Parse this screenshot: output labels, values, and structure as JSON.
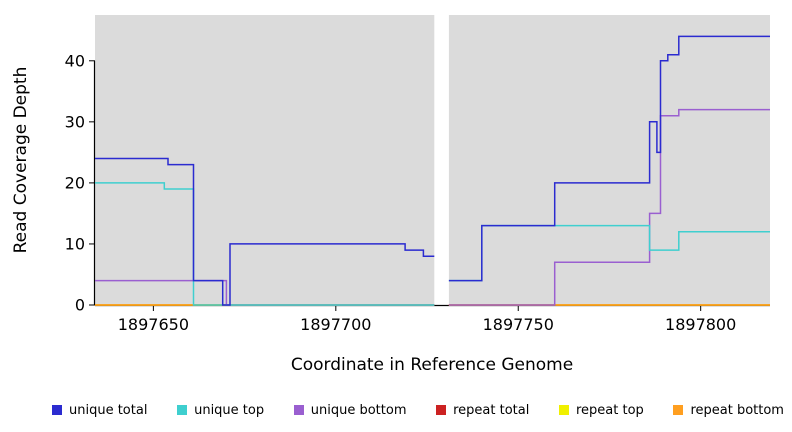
{
  "chart_data": {
    "type": "line",
    "style": "step",
    "title": "",
    "xlabel": "Coordinate in Reference Genome",
    "ylabel": "Read Coverage Depth",
    "xlim": [
      1897634,
      1897819
    ],
    "ylim": [
      0,
      47.5
    ],
    "xticks": [
      1897650,
      1897700,
      1897750,
      1897800
    ],
    "yticks": [
      0,
      10,
      20,
      30,
      40
    ],
    "gap_x": [
      1897727,
      1897731
    ],
    "panel_color": "#DBDBDB",
    "axis_color": "#000000",
    "legend_position": "bottom",
    "draw_order": [
      "repeat total",
      "repeat top",
      "repeat bottom",
      "unique bottom",
      "unique top",
      "unique total"
    ],
    "series": [
      {
        "name": "unique total",
        "color": "#2B2BD0",
        "segments": [
          [
            [
              1897634,
              24
            ],
            [
              1897654,
              24
            ],
            [
              1897654,
              23
            ],
            [
              1897661,
              23
            ],
            [
              1897661,
              4
            ],
            [
              1897669,
              4
            ],
            [
              1897669,
              0
            ],
            [
              1897671,
              0
            ],
            [
              1897671,
              10
            ],
            [
              1897719,
              10
            ],
            [
              1897719,
              9
            ],
            [
              1897724,
              9
            ],
            [
              1897724,
              8
            ],
            [
              1897727,
              8
            ]
          ],
          [
            [
              1897731,
              4
            ],
            [
              1897740,
              4
            ],
            [
              1897740,
              13
            ],
            [
              1897760,
              13
            ],
            [
              1897760,
              20
            ],
            [
              1897786,
              20
            ],
            [
              1897786,
              30
            ],
            [
              1897788,
              30
            ],
            [
              1897788,
              25
            ],
            [
              1897789,
              25
            ],
            [
              1897789,
              40
            ],
            [
              1897791,
              40
            ],
            [
              1897791,
              41
            ],
            [
              1897794,
              41
            ],
            [
              1897794,
              44
            ],
            [
              1897819,
              44
            ]
          ]
        ]
      },
      {
        "name": "unique top",
        "color": "#3FCFCF",
        "segments": [
          [
            [
              1897634,
              20
            ],
            [
              1897653,
              20
            ],
            [
              1897653,
              19
            ],
            [
              1897661,
              19
            ],
            [
              1897661,
              0
            ],
            [
              1897727,
              0
            ]
          ],
          [
            [
              1897731,
              4
            ],
            [
              1897740,
              4
            ],
            [
              1897740,
              13
            ],
            [
              1897786,
              13
            ],
            [
              1897786,
              9
            ],
            [
              1897794,
              9
            ],
            [
              1897794,
              12
            ],
            [
              1897819,
              12
            ]
          ]
        ]
      },
      {
        "name": "unique bottom",
        "color": "#9A5FD0",
        "segments": [
          [
            [
              1897634,
              4
            ],
            [
              1897670,
              4
            ],
            [
              1897670,
              0
            ],
            [
              1897727,
              0
            ]
          ],
          [
            [
              1897731,
              0
            ],
            [
              1897760,
              0
            ],
            [
              1897760,
              7
            ],
            [
              1897786,
              7
            ],
            [
              1897786,
              15
            ],
            [
              1897789,
              15
            ],
            [
              1897789,
              31
            ],
            [
              1897794,
              31
            ],
            [
              1897794,
              32
            ],
            [
              1897819,
              32
            ]
          ]
        ]
      },
      {
        "name": "repeat total",
        "color": "#CC2222",
        "segments": [
          [
            [
              1897634,
              0
            ],
            [
              1897727,
              0
            ]
          ],
          [
            [
              1897731,
              0
            ],
            [
              1897819,
              0
            ]
          ]
        ]
      },
      {
        "name": "repeat top",
        "color": "#F0F000",
        "segments": [
          [
            [
              1897634,
              0
            ],
            [
              1897727,
              0
            ]
          ],
          [
            [
              1897731,
              0
            ],
            [
              1897819,
              0
            ]
          ]
        ]
      },
      {
        "name": "repeat bottom",
        "color": "#FF9F20",
        "segments": [
          [
            [
              1897634,
              0
            ],
            [
              1897727,
              0
            ]
          ],
          [
            [
              1897731,
              0
            ],
            [
              1897819,
              0
            ]
          ]
        ]
      }
    ]
  }
}
